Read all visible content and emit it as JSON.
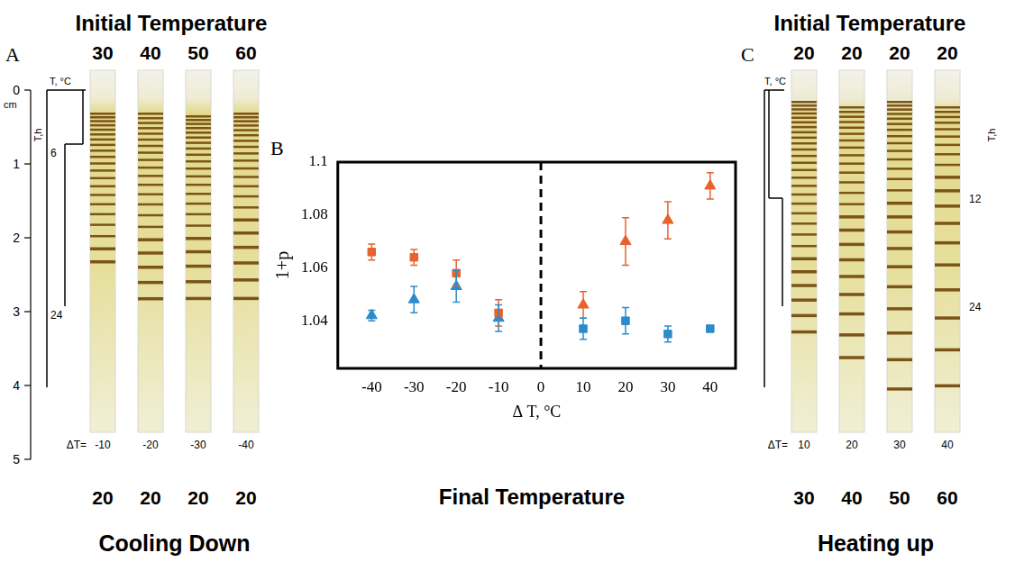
{
  "headers": {
    "top_left": "Initial Temperature",
    "top_right": "Initial Temperature",
    "bottom_center": "Final Temperature"
  },
  "panel_a": {
    "letter": "A",
    "title": "Cooling Down",
    "ruler": {
      "unit": "cm",
      "ticks": [
        0,
        1,
        2,
        3,
        4,
        5
      ]
    },
    "inset": {
      "temperature_label": "T, °C",
      "time_label": "T,h",
      "time_ticks": [
        6,
        24
      ]
    },
    "initial_temperatures": [
      30,
      40,
      50,
      60
    ],
    "final_temperatures": [
      20,
      20,
      20,
      20
    ],
    "delta_label": "ΔT=",
    "delta_t": [
      -10,
      -20,
      -30,
      -40
    ]
  },
  "chart_data": {
    "type": "scatter",
    "letter": "B",
    "x_label": "Δ T, °C",
    "y_label": "1+p",
    "xlim": [
      -48,
      46
    ],
    "xticks": [
      -40,
      -30,
      -20,
      -10,
      0,
      10,
      20,
      30,
      40
    ],
    "ylim": [
      1.022,
      1.1
    ],
    "yticks": [
      1.04,
      1.06,
      1.08,
      1.1
    ],
    "grid": false,
    "vertical_line": {
      "x": 0,
      "line_style": "dashed"
    },
    "series": [
      {
        "color": "#e8622c",
        "marker": "square",
        "x": [
          -40,
          -30,
          -20,
          -10
        ],
        "values": [
          1.066,
          1.064,
          1.058,
          1.043
        ],
        "errors": [
          0.003,
          0.003,
          0.005,
          0.005
        ]
      },
      {
        "color": "#2b8ccc",
        "marker": "triangle",
        "x": [
          -40,
          -30,
          -20,
          -10
        ],
        "values": [
          1.042,
          1.048,
          1.053,
          1.041
        ],
        "errors": [
          0.002,
          0.005,
          0.006,
          0.005
        ]
      },
      {
        "color": "#e8622c",
        "marker": "triangle",
        "x": [
          10,
          20,
          30,
          40
        ],
        "values": [
          1.046,
          1.07,
          1.078,
          1.091
        ],
        "errors": [
          0.005,
          0.009,
          0.007,
          0.005
        ]
      },
      {
        "color": "#2b8ccc",
        "marker": "square",
        "x": [
          10,
          20,
          30,
          40
        ],
        "values": [
          1.037,
          1.04,
          1.035,
          1.037
        ],
        "errors": [
          0.004,
          0.005,
          0.003,
          0.001
        ]
      }
    ]
  },
  "panel_c": {
    "letter": "C",
    "title": "Heating up",
    "inset": {
      "temperature_label": "T, °C",
      "time_label": "T,h",
      "time_ticks": [
        12,
        24
      ]
    },
    "initial_temperatures": [
      20,
      20,
      20,
      20
    ],
    "final_temperatures": [
      30,
      40,
      50,
      60
    ],
    "delta_label": "ΔT=",
    "delta_t": [
      10,
      20,
      30,
      40
    ]
  }
}
